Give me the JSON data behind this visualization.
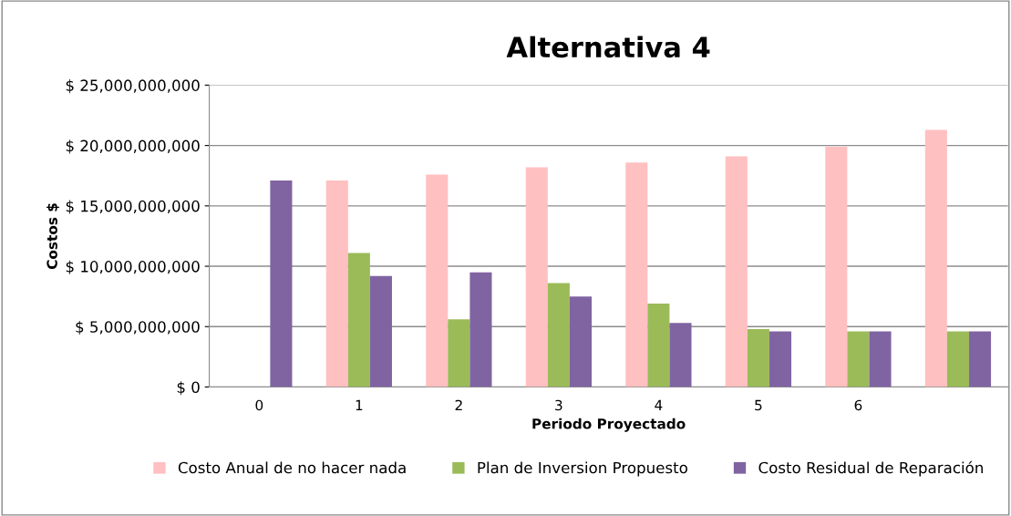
{
  "chart_data": {
    "type": "bar",
    "title": "Alternativa 4",
    "xlabel": "Periodo Proyectado",
    "ylabel": "Costos $",
    "categories": [
      "0",
      "1",
      "2",
      "3",
      "4",
      "5",
      "6",
      null
    ],
    "series": [
      {
        "name": "Costo Anual de no hacer nada",
        "color": "#ffc0c1",
        "values": [
          null,
          17100000000,
          17600000000,
          18200000000,
          18600000000,
          19100000000,
          19900000000,
          21300000000
        ]
      },
      {
        "name": "Plan de Inversion Propuesto",
        "color": "#9bbb59",
        "values": [
          null,
          11100000000,
          5600000000,
          8600000000,
          6900000000,
          4800000000,
          4600000000,
          4600000000
        ]
      },
      {
        "name": "Costo Residual de Reparación",
        "color": "#8064a2",
        "values": [
          17100000000,
          9200000000,
          9500000000,
          7500000000,
          5300000000,
          4600000000,
          4600000000,
          4600000000
        ]
      }
    ],
    "ylim": [
      0,
      25000000000
    ],
    "yticks": [
      {
        "value": 0,
        "label": "$ 0"
      },
      {
        "value": 5000000000,
        "label": "$ 5,000,000,000"
      },
      {
        "value": 10000000000,
        "label": "$ 10,000,000,000"
      },
      {
        "value": 15000000000,
        "label": "$ 15,000,000,000"
      },
      {
        "value": 20000000000,
        "label": "$ 20,000,000,000"
      },
      {
        "value": 25000000000,
        "label": "$ 25,000,000,000"
      }
    ],
    "grid": "y",
    "legend": "bottom"
  }
}
